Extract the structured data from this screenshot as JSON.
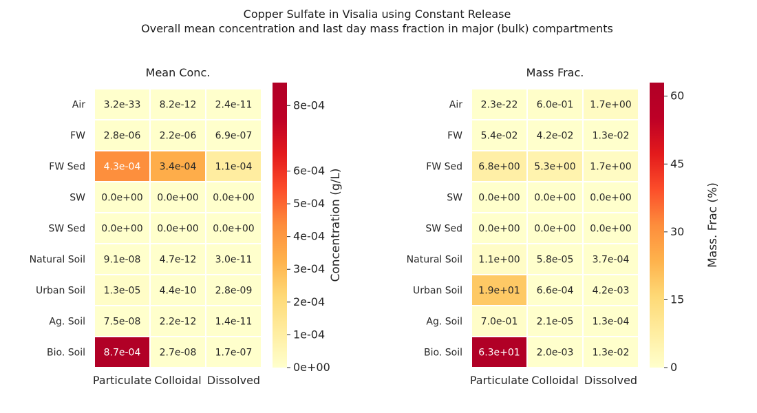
{
  "figure": {
    "title_line1": "Copper Sulfate in Visalia using Constant Release",
    "title_line2": "Overall mean concentration and last day mass fraction in major (bulk) compartments"
  },
  "chart_data": [
    {
      "type": "heatmap",
      "title": "Mean Conc.",
      "rows": [
        "Air",
        "FW",
        "FW Sed",
        "SW",
        "SW Sed",
        "Natural Soil",
        "Urban Soil",
        "Ag. Soil",
        "Bio. Soil"
      ],
      "columns": [
        "Particulate",
        "Colloidal",
        "Dissolved"
      ],
      "values": [
        [
          3.2e-33,
          8.2e-12,
          2.4e-11
        ],
        [
          2.8e-06,
          2.2e-06,
          6.9e-07
        ],
        [
          0.00043,
          0.00034,
          0.00011
        ],
        [
          0.0,
          0.0,
          0.0
        ],
        [
          0.0,
          0.0,
          0.0
        ],
        [
          9.1e-08,
          4.7e-12,
          3e-11
        ],
        [
          1.3e-05,
          4.4e-10,
          2.8e-09
        ],
        [
          7.5e-08,
          2.2e-12,
          1.4e-11
        ],
        [
          0.00087,
          2.7e-08,
          1.7e-07
        ]
      ],
      "labels": [
        [
          "3.2e-33",
          "8.2e-12",
          "2.4e-11"
        ],
        [
          "2.8e-06",
          "2.2e-06",
          "6.9e-07"
        ],
        [
          "4.3e-04",
          "3.4e-04",
          "1.1e-04"
        ],
        [
          "0.0e+00",
          "0.0e+00",
          "0.0e+00"
        ],
        [
          "0.0e+00",
          "0.0e+00",
          "0.0e+00"
        ],
        [
          "9.1e-08",
          "4.7e-12",
          "3.0e-11"
        ],
        [
          "1.3e-05",
          "4.4e-10",
          "2.8e-09"
        ],
        [
          "7.5e-08",
          "2.2e-12",
          "1.4e-11"
        ],
        [
          "8.7e-04",
          "2.7e-08",
          "1.7e-07"
        ]
      ],
      "colorbar": {
        "label": "Concentration (g/L)",
        "vmin": 0,
        "vmax": 0.00087,
        "ticks": [
          0,
          0.0001,
          0.0002,
          0.0003,
          0.0004,
          0.0005,
          0.0006,
          0.0008
        ],
        "tick_labels": [
          "0e+00",
          "1e-04",
          "2e-04",
          "3e-04",
          "4e-04",
          "5e-04",
          "6e-04",
          "8e-04"
        ]
      },
      "colormap": "YlOrRd"
    },
    {
      "type": "heatmap",
      "title": "Mass Frac.",
      "rows": [
        "Air",
        "FW",
        "FW Sed",
        "SW",
        "SW Sed",
        "Natural Soil",
        "Urban Soil",
        "Ag. Soil",
        "Bio. Soil"
      ],
      "columns": [
        "Particulate",
        "Colloidal",
        "Dissolved"
      ],
      "values": [
        [
          2.3e-22,
          0.6,
          1.7
        ],
        [
          0.054,
          0.042,
          0.013
        ],
        [
          6.8,
          5.3,
          1.7
        ],
        [
          0.0,
          0.0,
          0.0
        ],
        [
          0.0,
          0.0,
          0.0
        ],
        [
          1.1,
          5.8e-05,
          0.00037
        ],
        [
          19,
          0.00066,
          0.0042
        ],
        [
          0.7,
          2.1e-05,
          0.00013
        ],
        [
          63,
          0.002,
          0.013
        ]
      ],
      "labels": [
        [
          "2.3e-22",
          "6.0e-01",
          "1.7e+00"
        ],
        [
          "5.4e-02",
          "4.2e-02",
          "1.3e-02"
        ],
        [
          "6.8e+00",
          "5.3e+00",
          "1.7e+00"
        ],
        [
          "0.0e+00",
          "0.0e+00",
          "0.0e+00"
        ],
        [
          "0.0e+00",
          "0.0e+00",
          "0.0e+00"
        ],
        [
          "1.1e+00",
          "5.8e-05",
          "3.7e-04"
        ],
        [
          "1.9e+01",
          "6.6e-04",
          "4.2e-03"
        ],
        [
          "7.0e-01",
          "2.1e-05",
          "1.3e-04"
        ],
        [
          "6.3e+01",
          "2.0e-03",
          "1.3e-02"
        ]
      ],
      "colorbar": {
        "label": "Mass. Frac (%)",
        "vmin": 0,
        "vmax": 63,
        "ticks": [
          0,
          15,
          30,
          45,
          60
        ],
        "tick_labels": [
          "0",
          "15",
          "30",
          "45",
          "60"
        ]
      },
      "colormap": "YlOrRd"
    }
  ]
}
